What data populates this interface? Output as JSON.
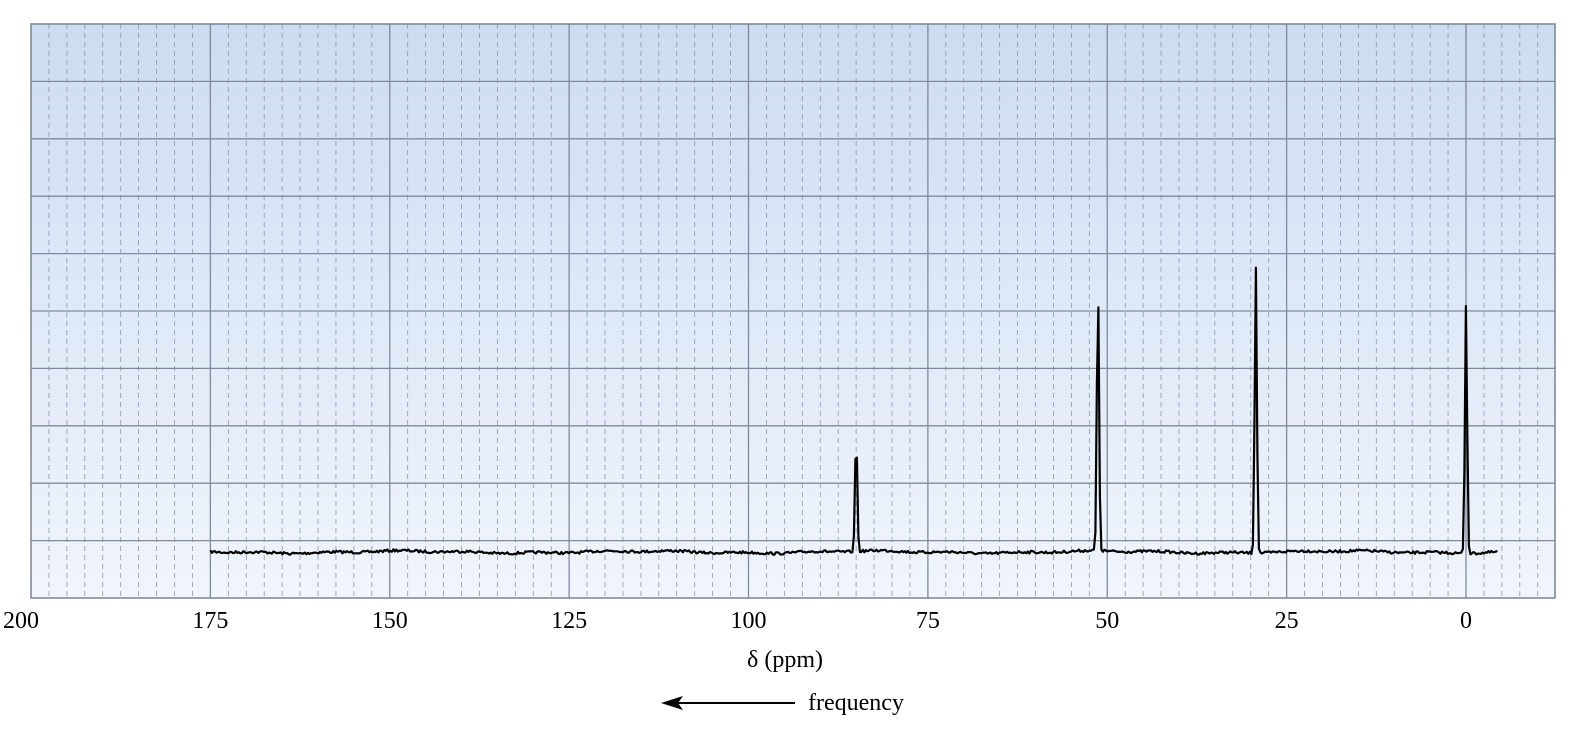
{
  "chart_data": {
    "type": "line",
    "title": "",
    "xlabel": "δ (ppm)",
    "ylabel": "",
    "xlim": [
      200,
      -10
    ],
    "x_reversed": true,
    "x_ticks": [
      200,
      175,
      150,
      125,
      100,
      75,
      50,
      25,
      0
    ],
    "x_tick_labels": [
      "200",
      "175",
      "150",
      "125",
      "100",
      "75",
      "50",
      "25",
      "0"
    ],
    "grid": true,
    "background": "light blue gradient",
    "spectrum": {
      "range_ppm": [
        175,
        -4.5
      ],
      "peaks": [
        {
          "ppm": 85,
          "relative_height": 0.25
        },
        {
          "ppm": 51.3,
          "relative_height": 0.56
        },
        {
          "ppm": 29.3,
          "relative_height": 0.61
        },
        {
          "ppm": 0,
          "relative_height": 0.53
        }
      ]
    },
    "annotation": {
      "text": "frequency",
      "arrow_direction": "left"
    },
    "colors": {
      "background_top": "#cddcf2",
      "background_bottom": "#f1f5fc",
      "grid_major": "#7f8b9c",
      "grid_minor": "#8a97aa",
      "trace": "#000000"
    }
  }
}
